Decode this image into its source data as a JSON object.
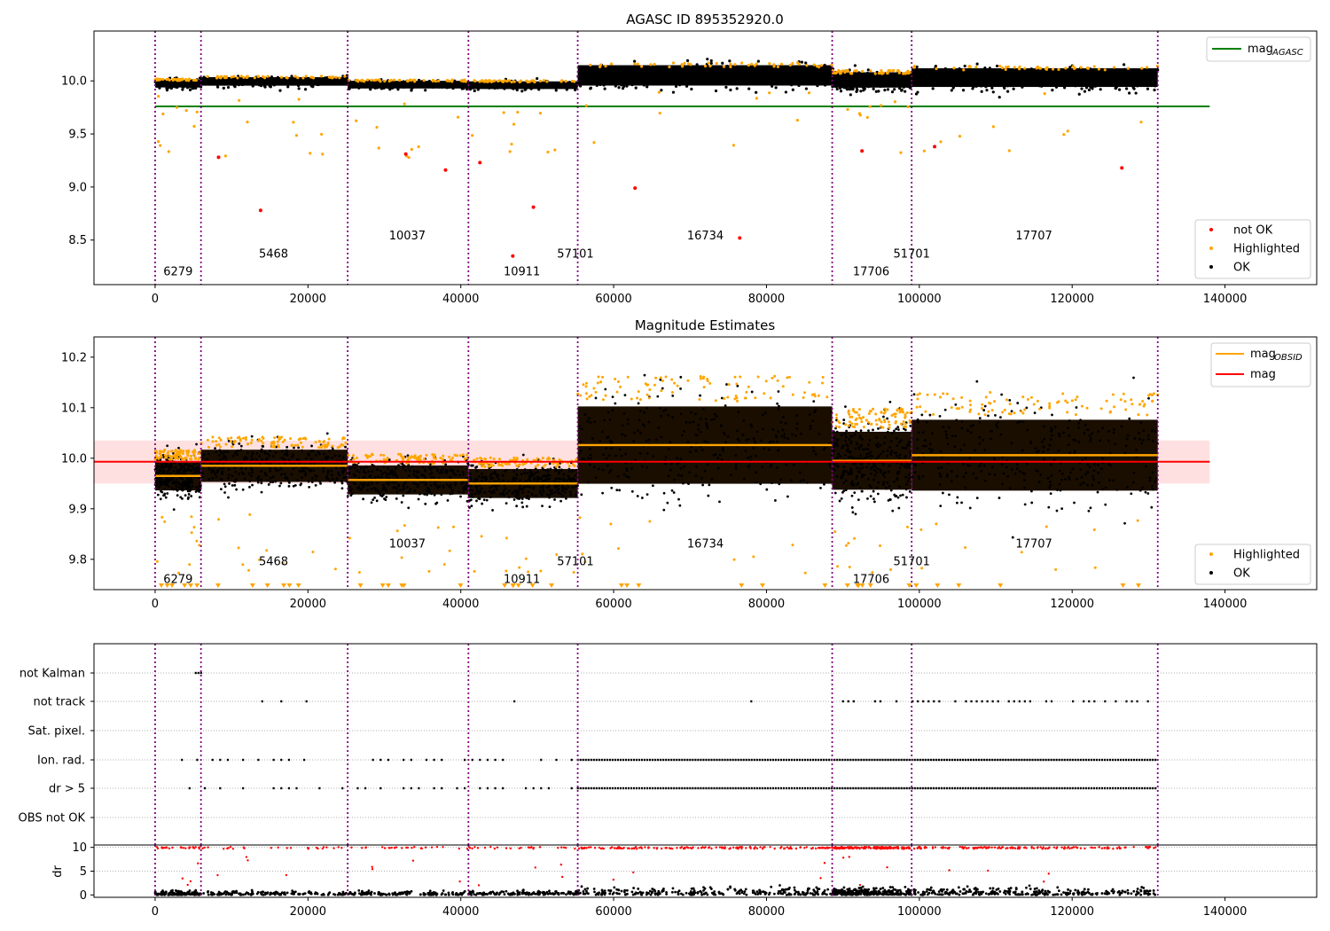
{
  "chart_data": [
    {
      "type": "scatter",
      "title": "AGASC ID 895352920.0",
      "xlim": [
        -8000,
        152000
      ],
      "ylim": [
        8.08,
        10.47
      ],
      "x_ticks": [
        "0",
        "20000",
        "40000",
        "60000",
        "80000",
        "100000",
        "120000",
        "140000"
      ],
      "y_ticks": [
        "8.5",
        "9.0",
        "9.5",
        "10.0"
      ],
      "mag_agasc": 9.76,
      "legend_top": {
        "label": "mag",
        "sub": "AGASC",
        "color": "#008000"
      },
      "legend_bottom": [
        {
          "label": "not OK",
          "color": "#ff0000"
        },
        {
          "label": "Highlighted",
          "color": "#ffa500"
        },
        {
          "label": "OK",
          "color": "#000000"
        }
      ],
      "obsid_boundaries": [
        0,
        6000,
        25200,
        41000,
        55300,
        88600,
        99000,
        131200
      ],
      "obsid_labels": [
        {
          "text": "6279",
          "x": 3000,
          "y": 8.2
        },
        {
          "text": "5468",
          "x": 15500,
          "y": 8.37
        },
        {
          "text": "10037",
          "x": 33000,
          "y": 8.54
        },
        {
          "text": "10911",
          "x": 48000,
          "y": 8.2
        },
        {
          "text": "57101",
          "x": 55000,
          "y": 8.37
        },
        {
          "text": "16734",
          "x": 72000,
          "y": 8.54
        },
        {
          "text": "17706",
          "x": 93700,
          "y": 8.2
        },
        {
          "text": "51701",
          "x": 99000,
          "y": 8.37
        },
        {
          "text": "17707",
          "x": 115000,
          "y": 8.54
        }
      ],
      "segments": [
        {
          "x0": 0,
          "x1": 6000,
          "mean": 9.97,
          "spread": 0.045
        },
        {
          "x0": 6000,
          "x1": 25200,
          "mean": 9.99,
          "spread": 0.05
        },
        {
          "x0": 25200,
          "x1": 41000,
          "mean": 9.96,
          "spread": 0.045
        },
        {
          "x0": 41000,
          "x1": 55300,
          "mean": 9.955,
          "spread": 0.045
        },
        {
          "x0": 55300,
          "x1": 88600,
          "mean": 10.04,
          "spread": 0.12
        },
        {
          "x0": 88600,
          "x1": 99000,
          "mean": 10.0,
          "spread": 0.09
        },
        {
          "x0": 99000,
          "x1": 131200,
          "mean": 10.02,
          "spread": 0.11
        }
      ],
      "not_ok_points": [
        {
          "x": 8300,
          "y": 9.28
        },
        {
          "x": 13800,
          "y": 8.78
        },
        {
          "x": 32800,
          "y": 9.31
        },
        {
          "x": 38000,
          "y": 9.16
        },
        {
          "x": 42500,
          "y": 9.23
        },
        {
          "x": 46800,
          "y": 8.35
        },
        {
          "x": 49500,
          "y": 8.81
        },
        {
          "x": 62800,
          "y": 8.99
        },
        {
          "x": 76500,
          "y": 8.52
        },
        {
          "x": 92500,
          "y": 9.34
        },
        {
          "x": 102000,
          "y": 9.38
        },
        {
          "x": 126500,
          "y": 9.18
        }
      ]
    },
    {
      "type": "scatter",
      "title": "Magnitude Estimates",
      "xlim": [
        -8000,
        152000
      ],
      "ylim": [
        9.74,
        10.24
      ],
      "x_ticks": [
        "0",
        "20000",
        "40000",
        "60000",
        "80000",
        "100000",
        "120000",
        "140000"
      ],
      "y_ticks": [
        "9.8",
        "9.9",
        "10.0",
        "10.1",
        "10.2"
      ],
      "mag": 9.993,
      "mag_band": [
        9.95,
        10.035
      ],
      "legend_top": [
        {
          "label": "mag",
          "sub": "OBSID",
          "color": "#ffa500"
        },
        {
          "label": "mag",
          "sub": "",
          "color": "#ff0000"
        }
      ],
      "legend_bottom": [
        {
          "label": "Highlighted",
          "color": "#ffa500"
        },
        {
          "label": "OK",
          "color": "#000000"
        }
      ],
      "obsid_mag": [
        {
          "x0": 0,
          "x1": 6000,
          "mag": 9.965
        },
        {
          "x0": 6000,
          "x1": 25200,
          "mag": 9.985
        },
        {
          "x0": 25200,
          "x1": 41000,
          "mag": 9.957
        },
        {
          "x0": 41000,
          "x1": 55300,
          "mag": 9.95
        },
        {
          "x0": 55300,
          "x1": 88600,
          "mag": 10.026
        },
        {
          "x0": 88600,
          "x1": 99000,
          "mag": 9.995
        },
        {
          "x0": 99000,
          "x1": 131200,
          "mag": 10.006
        }
      ],
      "obsid_labels": [
        {
          "text": "6279",
          "x": 3000,
          "y": 9.76
        },
        {
          "text": "5468",
          "x": 15500,
          "y": 9.795
        },
        {
          "text": "10037",
          "x": 33000,
          "y": 9.83
        },
        {
          "text": "10911",
          "x": 48000,
          "y": 9.76
        },
        {
          "text": "57101",
          "x": 55000,
          "y": 9.795
        },
        {
          "text": "16734",
          "x": 72000,
          "y": 9.83
        },
        {
          "text": "17706",
          "x": 93700,
          "y": 9.76
        },
        {
          "text": "51701",
          "x": 99000,
          "y": 9.795
        },
        {
          "text": "17707",
          "x": 115000,
          "y": 9.83
        }
      ]
    },
    {
      "type": "scatter",
      "title": "",
      "xlim": [
        -8000,
        152000
      ],
      "x_ticks": [
        "0",
        "20000",
        "40000",
        "60000",
        "80000",
        "100000",
        "120000",
        "140000"
      ],
      "flag_rows": [
        "not Kalman",
        "not track",
        "Sat. pixel.",
        "Ion. rad.",
        "dr > 5",
        "OBS not OK"
      ],
      "flag_spans": {
        "not Kalman": [
          [
            5300,
            6200
          ]
        ],
        "Ion. rad.": [
          [
            55300,
            131200
          ]
        ],
        "dr > 5": [
          [
            55300,
            131200
          ]
        ],
        "not track": [
          [
            88600,
            131200
          ]
        ]
      },
      "dr_ylabel": "dr",
      "dr_ylim": [
        -0.5,
        10.5
      ],
      "dr_ticks": [
        "0",
        "5",
        "10"
      ]
    }
  ]
}
